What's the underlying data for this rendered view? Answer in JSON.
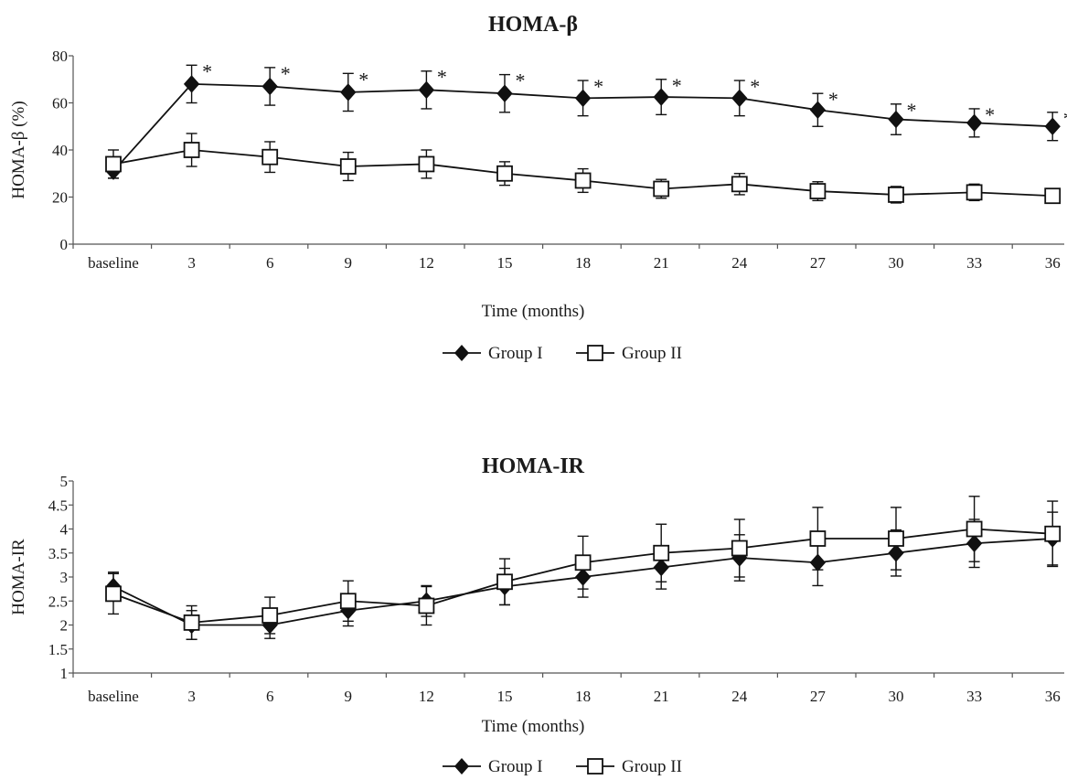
{
  "chart_data": [
    {
      "type": "line",
      "title": "HOMA-β",
      "xlabel": "Time (months)",
      "ylabel": "HOMA-β (%)",
      "categories": [
        "baseline",
        "3",
        "6",
        "9",
        "12",
        "15",
        "18",
        "21",
        "24",
        "27",
        "30",
        "33",
        "36"
      ],
      "ylim": [
        0,
        80
      ],
      "yticks": [
        "0",
        "20",
        "40",
        "60",
        "80"
      ],
      "grid": false,
      "legend_position": "bottom-center",
      "series": [
        {
          "name": "Group I",
          "marker": "diamond-filled",
          "values": [
            31,
            68,
            67,
            64.5,
            65.5,
            64,
            62,
            62.5,
            62,
            57,
            53,
            51.5,
            50
          ],
          "error": [
            3,
            8,
            8,
            8,
            8,
            8,
            7.5,
            7.5,
            7.5,
            7,
            6.5,
            6,
            6
          ]
        },
        {
          "name": "Group II",
          "marker": "square-open",
          "values": [
            34,
            40,
            37,
            33,
            34,
            30,
            27,
            23.5,
            25.5,
            22.5,
            21,
            22,
            20.5
          ],
          "error": [
            6,
            7,
            6.5,
            6,
            6,
            5,
            5,
            4,
            4.5,
            4,
            3.5,
            3.5,
            3
          ]
        }
      ],
      "annotations": [
        {
          "text": "*",
          "category": "3"
        },
        {
          "text": "*",
          "category": "6"
        },
        {
          "text": "*",
          "category": "9"
        },
        {
          "text": "*",
          "category": "12"
        },
        {
          "text": "*",
          "category": "15"
        },
        {
          "text": "*",
          "category": "18"
        },
        {
          "text": "*",
          "category": "21"
        },
        {
          "text": "*",
          "category": "24"
        },
        {
          "text": "*",
          "category": "27"
        },
        {
          "text": "*",
          "category": "30"
        },
        {
          "text": "*",
          "category": "33"
        },
        {
          "text": "*",
          "category": "36"
        }
      ]
    },
    {
      "type": "line",
      "title": "HOMA-IR",
      "xlabel": "Time (months)",
      "ylabel": "HOMA-IR",
      "categories": [
        "baseline",
        "3",
        "6",
        "9",
        "12",
        "15",
        "18",
        "21",
        "24",
        "27",
        "30",
        "33",
        "36"
      ],
      "ylim": [
        1,
        5
      ],
      "yticks": [
        "1",
        "1.5",
        "2",
        "2.5",
        "3",
        "3.5",
        "4",
        "4.5",
        "5"
      ],
      "grid": false,
      "legend_position": "bottom-center",
      "series": [
        {
          "name": "Group I",
          "marker": "diamond-filled",
          "values": [
            2.8,
            2.0,
            2.0,
            2.3,
            2.5,
            2.8,
            3.0,
            3.2,
            3.4,
            3.3,
            3.5,
            3.7,
            3.8
          ],
          "error": [
            0.3,
            0.3,
            0.28,
            0.32,
            0.32,
            0.38,
            0.42,
            0.45,
            0.48,
            0.48,
            0.48,
            0.5,
            0.55
          ]
        },
        {
          "name": "Group II",
          "marker": "square-open",
          "values": [
            2.65,
            2.05,
            2.2,
            2.5,
            2.4,
            2.9,
            3.3,
            3.5,
            3.6,
            3.8,
            3.8,
            4.0,
            3.9
          ],
          "error": [
            0.42,
            0.35,
            0.38,
            0.42,
            0.4,
            0.48,
            0.55,
            0.6,
            0.6,
            0.65,
            0.65,
            0.68,
            0.68
          ]
        }
      ],
      "annotations": []
    }
  ]
}
